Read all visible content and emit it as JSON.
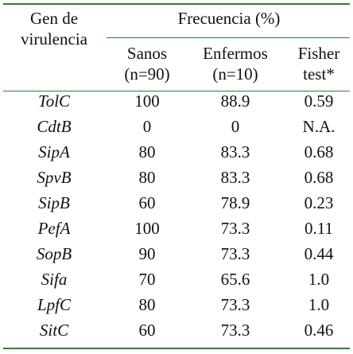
{
  "header": {
    "gene_line1": "Gen de",
    "gene_line2": "virulencia",
    "group_title": "Frecuencia (%)",
    "col_sanos_line1": "Sanos",
    "col_sanos_line2": "(n=90)",
    "col_enfermos_line1": "Enfermos",
    "col_enfermos_line2": "(n=10)",
    "col_fisher_line1": "Fisher",
    "col_fisher_line2": "test*"
  },
  "rows": [
    {
      "gene": "TolC",
      "sanos": "100",
      "enfermos": "88.9",
      "fisher": "0.59"
    },
    {
      "gene": "CdtB",
      "sanos": "0",
      "enfermos": "0",
      "fisher": "N.A."
    },
    {
      "gene": "SipA",
      "sanos": "80",
      "enfermos": "83.3",
      "fisher": "0.68"
    },
    {
      "gene": "SpvB",
      "sanos": "80",
      "enfermos": "83.3",
      "fisher": "0.68"
    },
    {
      "gene": "SipB",
      "sanos": "60",
      "enfermos": "78.9",
      "fisher": "0.23"
    },
    {
      "gene": "PefA",
      "sanos": "100",
      "enfermos": "73.3",
      "fisher": "0.11"
    },
    {
      "gene": "SopB",
      "sanos": "90",
      "enfermos": "73.3",
      "fisher": "0.44"
    },
    {
      "gene": "Sifa",
      "sanos": "70",
      "enfermos": "65.6",
      "fisher": "1.0"
    },
    {
      "gene": "LpfC",
      "sanos": "80",
      "enfermos": "73.3",
      "fisher": "1.0"
    },
    {
      "gene": "SitC",
      "sanos": "60",
      "enfermos": "73.3",
      "fisher": "0.46"
    }
  ],
  "colors": {
    "rule": "#2f7f2f",
    "text": "#111111"
  }
}
